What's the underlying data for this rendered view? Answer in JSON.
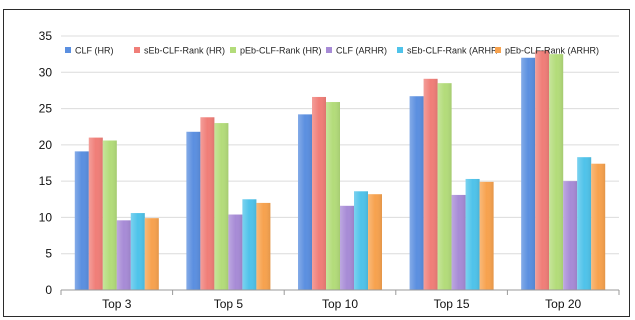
{
  "chart_data": {
    "type": "bar",
    "categories": [
      "Top 3",
      "Top 5",
      "Top 10",
      "Top 15",
      "Top 20"
    ],
    "ylim": [
      0,
      35
    ],
    "yticks": [
      0,
      5,
      10,
      15,
      20,
      25,
      30,
      35
    ],
    "grid": true,
    "legend_position": "top",
    "series": [
      {
        "name": "CLF (HR)",
        "color": "#5b8fe0",
        "values": [
          19.1,
          21.8,
          24.2,
          26.7,
          32.0
        ]
      },
      {
        "name": "sEb-CLF-Rank (HR)",
        "color": "#f07e78",
        "values": [
          21.0,
          23.8,
          26.6,
          29.1,
          33.0
        ]
      },
      {
        "name": "pEb-CLF-Rank (HR)",
        "color": "#b3dc7a",
        "values": [
          20.6,
          23.0,
          25.9,
          28.5,
          32.5
        ]
      },
      {
        "name": "CLF (ARHR)",
        "color": "#a78bd6",
        "values": [
          9.6,
          10.4,
          11.6,
          13.1,
          15.0
        ]
      },
      {
        "name": "sEb-CLF-Rank (ARHR",
        "color": "#4fc3ea",
        "values": [
          10.6,
          12.5,
          13.6,
          15.3,
          18.3
        ]
      },
      {
        "name": "pEb-CLF-Rank (ARHR)",
        "color": "#f7a24e",
        "values": [
          9.9,
          12.0,
          13.2,
          14.9,
          17.4
        ]
      }
    ]
  }
}
